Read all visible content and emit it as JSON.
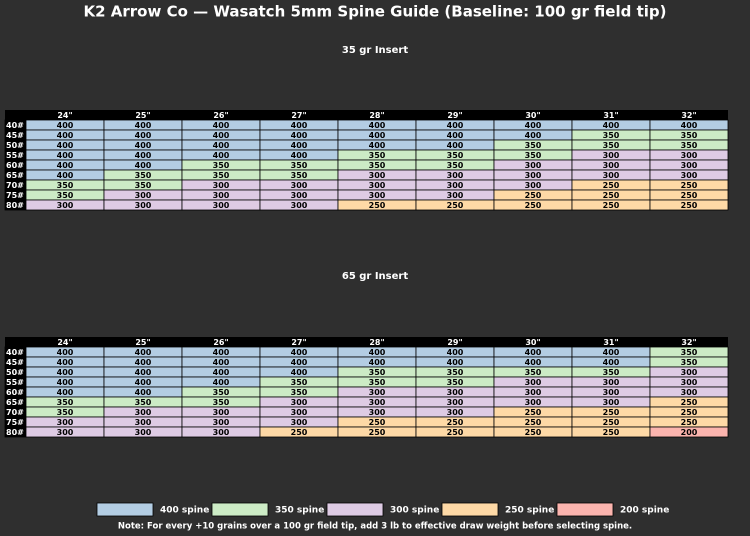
{
  "title": "K2 Arrow Co — Wasatch 5mm Spine Guide (Baseline: 100 gr field tip)",
  "tables": [
    {
      "subtitle": "35 gr Insert",
      "columns": [
        "24\"",
        "25\"",
        "26\"",
        "27\"",
        "28\"",
        "29\"",
        "30\"",
        "31\"",
        "32\""
      ],
      "rows": [
        {
          "label": "40#",
          "cells": [
            400,
            400,
            400,
            400,
            400,
            400,
            400,
            400,
            400
          ]
        },
        {
          "label": "45#",
          "cells": [
            400,
            400,
            400,
            400,
            400,
            400,
            400,
            350,
            350
          ]
        },
        {
          "label": "50#",
          "cells": [
            400,
            400,
            400,
            400,
            400,
            400,
            350,
            350,
            350
          ]
        },
        {
          "label": "55#",
          "cells": [
            400,
            400,
            400,
            400,
            350,
            350,
            350,
            300,
            300
          ]
        },
        {
          "label": "60#",
          "cells": [
            400,
            400,
            350,
            350,
            350,
            350,
            300,
            300,
            300
          ]
        },
        {
          "label": "65#",
          "cells": [
            400,
            350,
            350,
            350,
            300,
            300,
            300,
            300,
            300
          ]
        },
        {
          "label": "70#",
          "cells": [
            350,
            350,
            300,
            300,
            300,
            300,
            300,
            250,
            250
          ]
        },
        {
          "label": "75#",
          "cells": [
            350,
            300,
            300,
            300,
            300,
            300,
            250,
            250,
            250
          ]
        },
        {
          "label": "80#",
          "cells": [
            300,
            300,
            300,
            300,
            250,
            250,
            250,
            250,
            250
          ]
        }
      ]
    },
    {
      "subtitle": "65 gr Insert",
      "columns": [
        "24\"",
        "25\"",
        "26\"",
        "27\"",
        "28\"",
        "29\"",
        "30\"",
        "31\"",
        "32\""
      ],
      "rows": [
        {
          "label": "40#",
          "cells": [
            400,
            400,
            400,
            400,
            400,
            400,
            400,
            400,
            350
          ]
        },
        {
          "label": "45#",
          "cells": [
            400,
            400,
            400,
            400,
            400,
            400,
            400,
            400,
            350
          ]
        },
        {
          "label": "50#",
          "cells": [
            400,
            400,
            400,
            400,
            350,
            350,
            350,
            350,
            300
          ]
        },
        {
          "label": "55#",
          "cells": [
            400,
            400,
            400,
            350,
            350,
            350,
            300,
            300,
            300
          ]
        },
        {
          "label": "60#",
          "cells": [
            400,
            400,
            350,
            350,
            300,
            300,
            300,
            300,
            300
          ]
        },
        {
          "label": "65#",
          "cells": [
            350,
            350,
            350,
            300,
            300,
            300,
            300,
            300,
            250
          ]
        },
        {
          "label": "70#",
          "cells": [
            350,
            300,
            300,
            300,
            300,
            300,
            250,
            250,
            250
          ]
        },
        {
          "label": "75#",
          "cells": [
            300,
            300,
            300,
            300,
            250,
            250,
            250,
            250,
            250
          ]
        },
        {
          "label": "80#",
          "cells": [
            300,
            300,
            300,
            250,
            250,
            250,
            250,
            250,
            200
          ]
        }
      ]
    }
  ],
  "legend": [
    {
      "label": "400 spine",
      "color": "#b3cde3"
    },
    {
      "label": "350 spine",
      "color": "#ccebc5"
    },
    {
      "label": "300 spine",
      "color": "#decbe4"
    },
    {
      "label": "250 spine",
      "color": "#fed9a6"
    },
    {
      "label": "200 spine",
      "color": "#fbb4ae"
    }
  ],
  "note": "Note: For every +10 grains over a 100 gr field tip, add 3 lb to effective draw weight before selecting spine."
}
